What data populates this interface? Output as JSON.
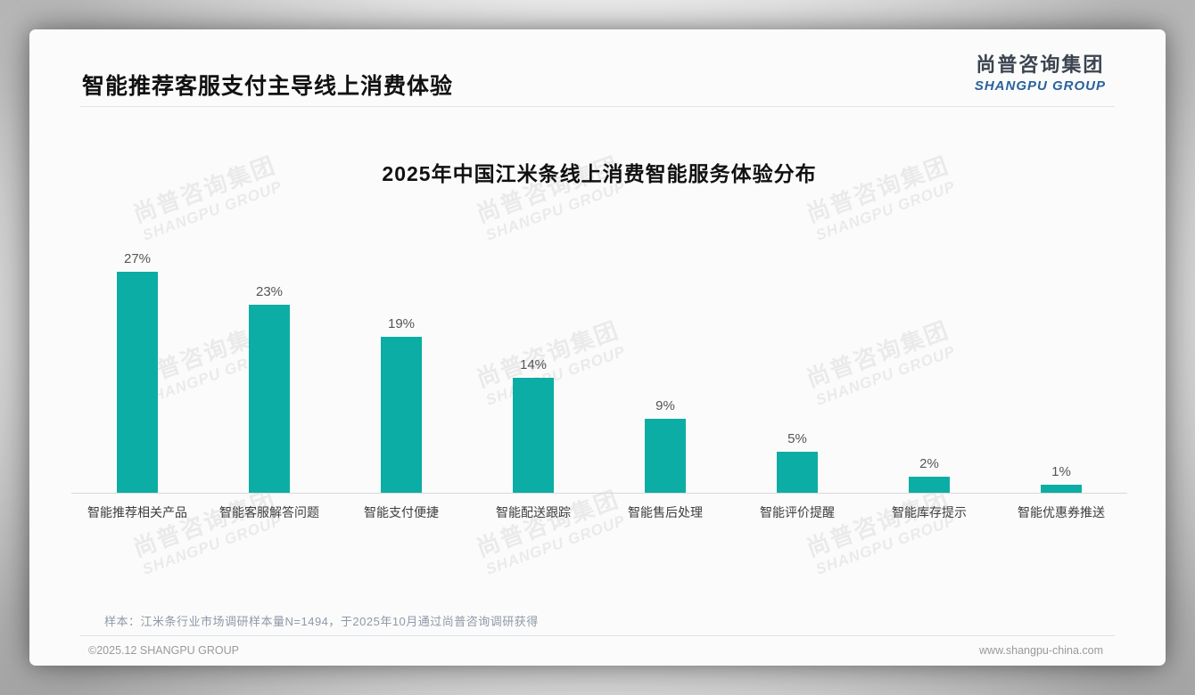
{
  "page": {
    "header": {
      "title": "智能推荐客服支付主导线上消费体验"
    },
    "logo": {
      "cn": "尚普咨询集团",
      "en": "SHANGPU GROUP",
      "en_color": "#2a629b"
    },
    "watermark": {
      "cn": "尚普咨询集团",
      "en": "SHANGPU GROUP"
    },
    "footnote": "样本：江米条行业市场调研样本量N=1494，于2025年10月通过尚普咨询调研获得",
    "footer": {
      "left": "©2025.12 SHANGPU GROUP",
      "right": "www.shangpu-china.com"
    }
  },
  "chart_data": {
    "type": "bar",
    "title": "2025年中国江米条线上消费智能服务体验分布",
    "categories": [
      "智能推荐相关产品",
      "智能客服解答问题",
      "智能支付便捷",
      "智能配送跟踪",
      "智能售后处理",
      "智能评价提醒",
      "智能库存提示",
      "智能优惠券推送"
    ],
    "values": [
      27,
      23,
      19,
      14,
      9,
      5,
      2,
      1
    ],
    "data_labels": [
      "27%",
      "23%",
      "19%",
      "14%",
      "9%",
      "5%",
      "2%",
      "1%"
    ],
    "unit": "%",
    "bar_color": "#0cada4",
    "ylim": [
      0,
      29
    ],
    "grid": false,
    "legend": "none",
    "xlabel": "",
    "ylabel": ""
  }
}
